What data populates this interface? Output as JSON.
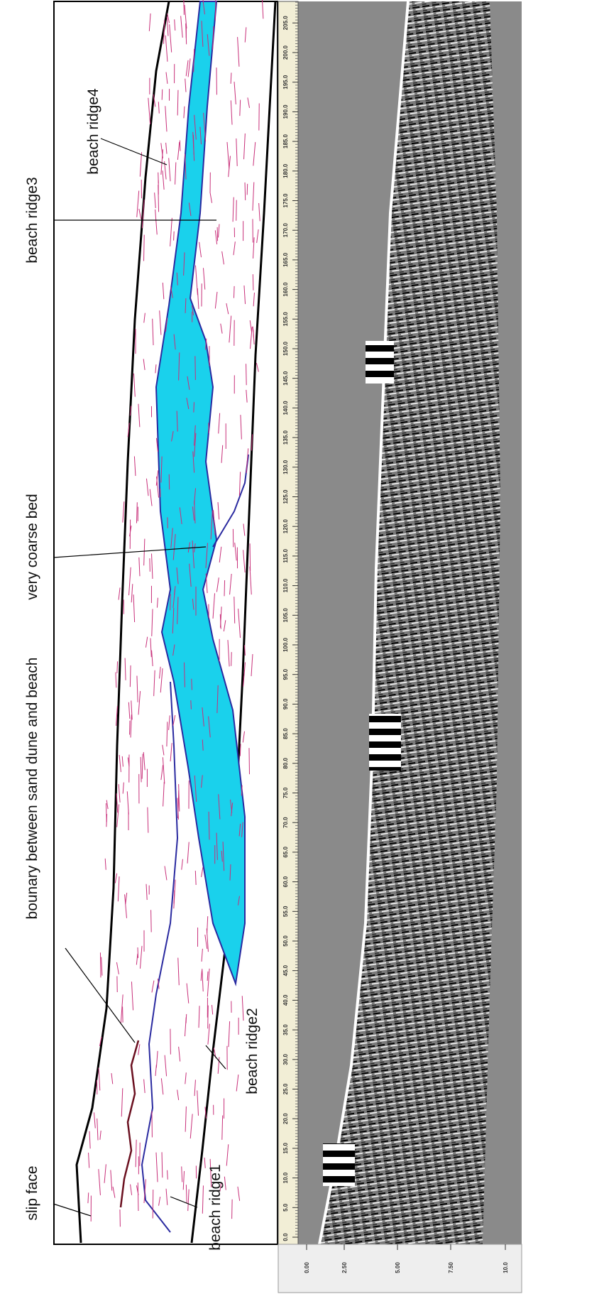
{
  "labels": {
    "slip_face": "slip face",
    "boundary": "bounary between sand dune and beach",
    "coarse_bed": "very coarse bed",
    "ridge3": "beach ridge3",
    "ridge4": "beach ridge4",
    "ridge2": "beach ridge2",
    "ridge1": "beach ridge1"
  },
  "distance_ticks": [
    "0.0",
    "5.0",
    "10.0",
    "15.0",
    "20.0",
    "25.0",
    "30.0",
    "35.0",
    "40.0",
    "45.0",
    "50.0",
    "55.0",
    "60.0",
    "65.0",
    "70.0",
    "75.0",
    "80.0",
    "85.0",
    "90.0",
    "95.0",
    "100.0",
    "105.0",
    "110.0",
    "115.0",
    "120.0",
    "125.0",
    "130.0",
    "135.0",
    "140.0",
    "145.0",
    "150.0",
    "155.0",
    "160.0",
    "165.0",
    "170.0",
    "175.0",
    "180.0",
    "185.0",
    "190.0",
    "195.0",
    "200.0",
    "205.0"
  ],
  "depth_ticks": [
    "0.00",
    "2.50",
    "5.00",
    "7.50",
    "10.0"
  ]
}
